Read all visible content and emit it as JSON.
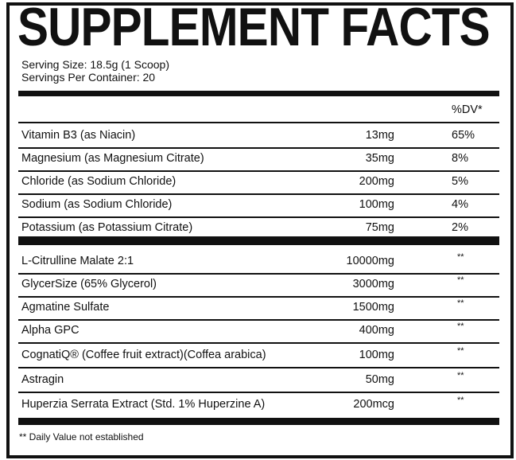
{
  "title": "SUPPLEMENT FACTS",
  "serving_size": "Serving Size: 18.5g (1 Scoop)",
  "servings_per_container": "Servings Per Container: 20",
  "dv_header": "%DV*",
  "nutrients": [
    {
      "name": "Vitamin B3 (as Niacin)",
      "amount": "13mg",
      "dv": "65%"
    },
    {
      "name": "Magnesium (as Magnesium Citrate)",
      "amount": "35mg",
      "dv": "8%"
    },
    {
      "name": "Chloride (as Sodium Chloride)",
      "amount": "200mg",
      "dv": "5%"
    },
    {
      "name": "Sodium (as Sodium Chloride)",
      "amount": "100mg",
      "dv": "4%"
    },
    {
      "name": "Potassium (as Potassium Citrate)",
      "amount": "75mg",
      "dv": "2%"
    }
  ],
  "ingredients": [
    {
      "name": "L-Citrulline Malate 2:1",
      "amount": "10000mg",
      "dv": "**"
    },
    {
      "name": "GlycerSize (65% Glycerol)",
      "amount": "3000mg",
      "dv": "**"
    },
    {
      "name": "Agmatine Sulfate",
      "amount": "1500mg",
      "dv": "**"
    },
    {
      "name": "Alpha GPC",
      "amount": "400mg",
      "dv": "**"
    },
    {
      "name": "CognatiQ® (Coffee fruit extract)(Coffea arabica)",
      "amount": "100mg",
      "dv": "**"
    },
    {
      "name": "Astragin",
      "amount": "50mg",
      "dv": "**"
    },
    {
      "name": "Huperzia Serrata Extract (Std. 1% Huperzine A)",
      "amount": "200mcg",
      "dv": "**"
    }
  ],
  "footnote": "** Daily Value not established"
}
